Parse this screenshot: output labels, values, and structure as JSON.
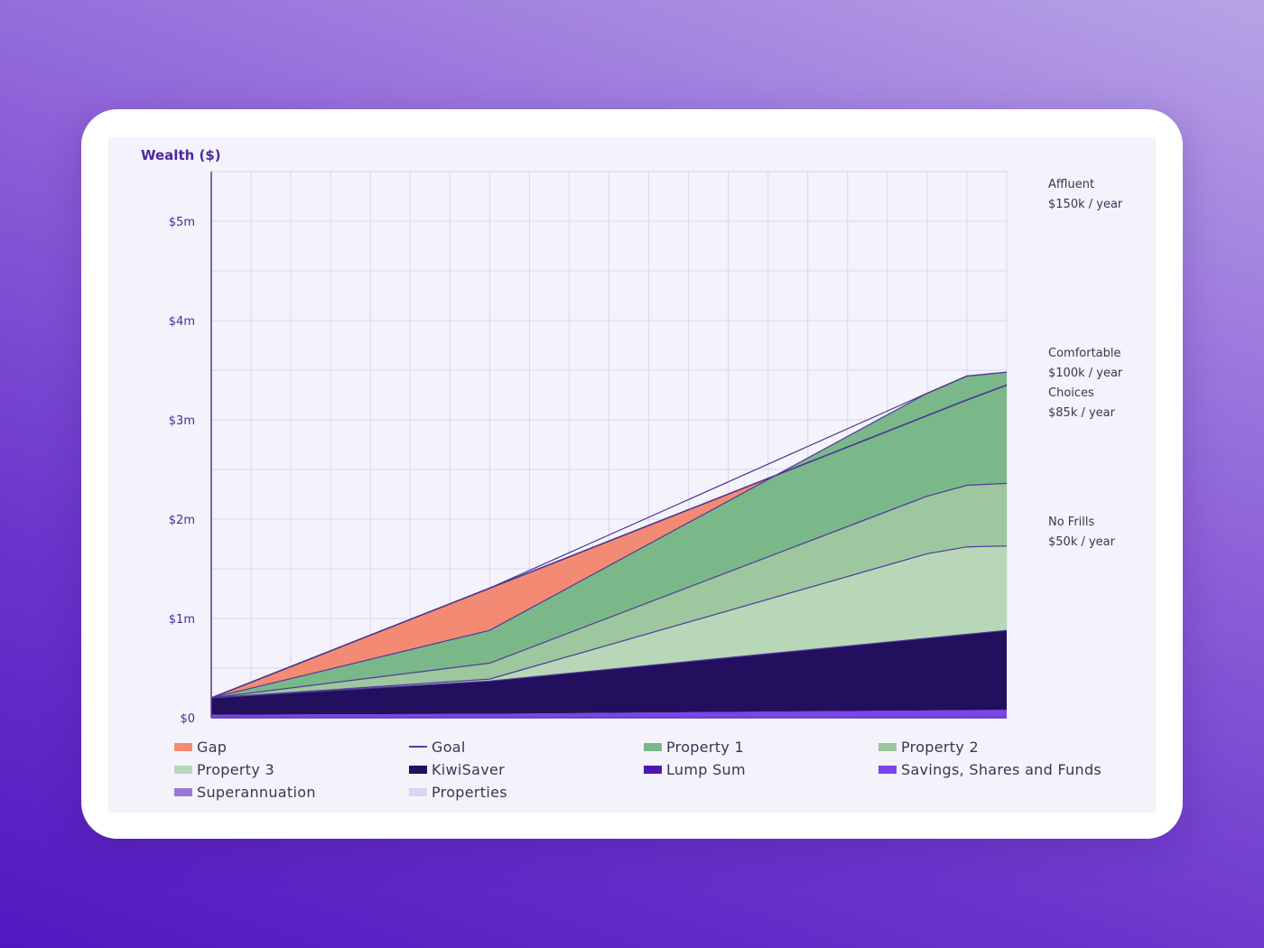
{
  "chart_data": {
    "type": "area",
    "ylabel": "Wealth ($)",
    "ylim": [
      0,
      5500000
    ],
    "y_ticks": [
      {
        "value": 0,
        "label": "$0"
      },
      {
        "value": 1000000,
        "label": "$1m"
      },
      {
        "value": 2000000,
        "label": "$2m"
      },
      {
        "value": 3000000,
        "label": "$3m"
      },
      {
        "value": 4000000,
        "label": "$4m"
      },
      {
        "value": 5000000,
        "label": "$5m"
      }
    ],
    "x": [
      0,
      7,
      20
    ],
    "xlim": [
      0,
      20
    ],
    "grid": true,
    "legend_position": "bottom",
    "stacked_series": [
      {
        "name": "Savings, Shares and Funds",
        "color": "#7b45ea",
        "x": [
          0,
          7,
          20
        ],
        "values": [
          30000,
          40000,
          80000
        ]
      },
      {
        "name": "KiwiSaver",
        "color": "#220f5e",
        "x": [
          0,
          7,
          20
        ],
        "values": [
          170000,
          330000,
          800000
        ]
      },
      {
        "name": "Property 3",
        "color": "#b8d7b9",
        "x": [
          0,
          7,
          18,
          19,
          20
        ],
        "values": [
          0,
          20000,
          850000,
          880000,
          850000
        ]
      },
      {
        "name": "Property 2",
        "color": "#9cc79f",
        "x": [
          0,
          7,
          18,
          19,
          20
        ],
        "values": [
          0,
          160000,
          580000,
          620000,
          630000
        ]
      },
      {
        "name": "Property 1",
        "color": "#7ab88a",
        "x": [
          0,
          7,
          19,
          20
        ],
        "values": [
          0,
          330000,
          1100000,
          1120000
        ]
      }
    ],
    "goal": {
      "name": "Goal",
      "x": [
        0,
        19,
        20
      ],
      "values": [
        200000,
        3200000,
        3350000
      ]
    },
    "gap": {
      "name": "Gap",
      "color": "#f38a74"
    },
    "annotations": [
      {
        "title": "Affluent",
        "subtitle": "$150k / year"
      },
      {
        "title": "Comfortable",
        "subtitle": "$100k / year"
      },
      {
        "title": "Choices",
        "subtitle": "$85k / year"
      },
      {
        "title": "No Frills",
        "subtitle": "$50k / year"
      }
    ],
    "annotation_values": [
      5000000,
      3300000,
      2900000,
      1600000
    ]
  },
  "legend": [
    {
      "label": "Gap",
      "color": "#f38a74",
      "kind": "box"
    },
    {
      "label": "Goal",
      "color": "#5a3aa0",
      "kind": "line"
    },
    {
      "label": "Property 1",
      "color": "#7ab88a",
      "kind": "box"
    },
    {
      "label": "Property 2",
      "color": "#9cc79f",
      "kind": "box"
    },
    {
      "label": "Property 3",
      "color": "#b8d7b9",
      "kind": "box"
    },
    {
      "label": "KiwiSaver",
      "color": "#220f5e",
      "kind": "box"
    },
    {
      "label": "Lump Sum",
      "color": "#4a18b0",
      "kind": "box"
    },
    {
      "label": "Savings, Shares and Funds",
      "color": "#7b45ea",
      "kind": "box"
    },
    {
      "label": "Superannuation",
      "color": "#9a78d8",
      "kind": "box"
    },
    {
      "label": "Properties",
      "color": "#ddd3f5",
      "kind": "box"
    }
  ]
}
